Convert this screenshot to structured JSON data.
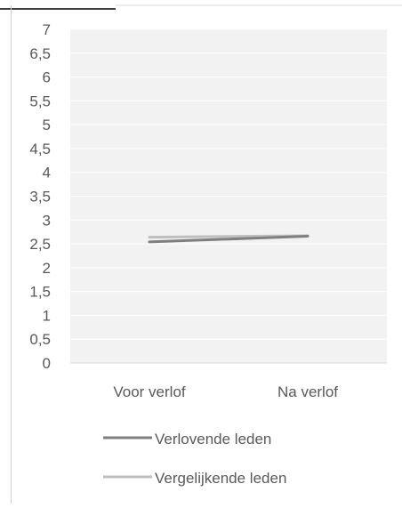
{
  "chart_data": {
    "type": "line",
    "title": "",
    "xlabel": "",
    "ylabel": "",
    "categories": [
      "Voor verlof",
      "Na verlof"
    ],
    "ylim": [
      0,
      7
    ],
    "yticks": [
      {
        "value": 0,
        "label": "0"
      },
      {
        "value": 0.5,
        "label": "0,5"
      },
      {
        "value": 1,
        "label": "1"
      },
      {
        "value": 1.5,
        "label": "1,5"
      },
      {
        "value": 2,
        "label": "2"
      },
      {
        "value": 2.5,
        "label": "2,5"
      },
      {
        "value": 3,
        "label": "3"
      },
      {
        "value": 3.5,
        "label": "3,5"
      },
      {
        "value": 4,
        "label": "4"
      },
      {
        "value": 4.5,
        "label": "4,5"
      },
      {
        "value": 5,
        "label": "5"
      },
      {
        "value": 5.5,
        "label": "5,5"
      },
      {
        "value": 6,
        "label": "6"
      },
      {
        "value": 6.5,
        "label": "6,5"
      },
      {
        "value": 7,
        "label": "7"
      }
    ],
    "grid": true,
    "legend_position": "bottom",
    "series": [
      {
        "name": "Verlovende leden",
        "values": [
          2.54,
          2.66
        ],
        "color": "#7f7f7f"
      },
      {
        "name": "Vergelijkende leden",
        "values": [
          2.64,
          2.67
        ],
        "color": "#bfbfbf"
      }
    ],
    "colors": {
      "plot_background": "#f2f2f2",
      "gridline": "#ffffff",
      "axis_text": "#595959",
      "frame": "#d0d0d0"
    }
  }
}
